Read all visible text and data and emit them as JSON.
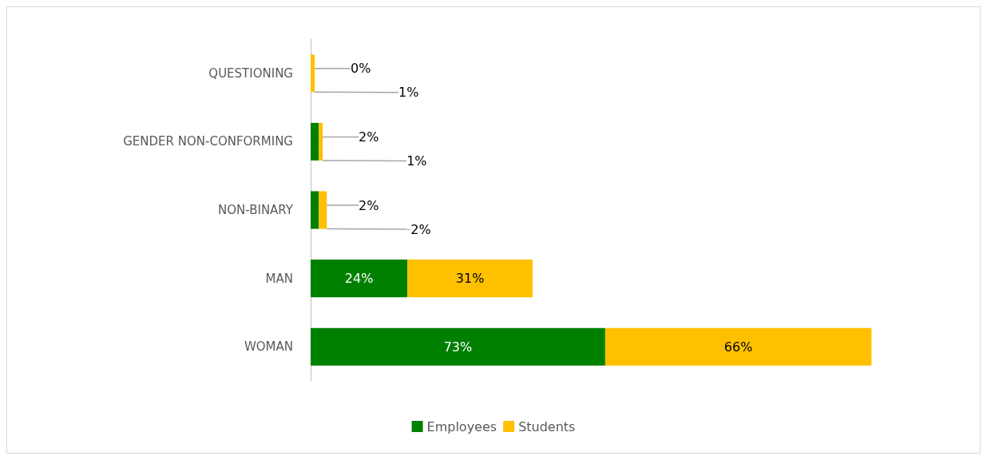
{
  "chart_data": {
    "type": "bar",
    "orientation": "horizontal",
    "stacked": true,
    "categories": [
      "QUESTIONING",
      "GENDER NON-CONFORMING",
      "NON-BINARY",
      "MAN",
      "WOMAN"
    ],
    "series": [
      {
        "name": "Employees",
        "color": "#008000",
        "values": [
          0,
          2,
          2,
          24,
          73
        ],
        "value_labels": [
          "0%",
          "2%",
          "2%",
          "24%",
          "73%"
        ]
      },
      {
        "name": "Students",
        "color": "#ffc000",
        "values": [
          1,
          1,
          2,
          31,
          66
        ],
        "value_labels": [
          "1%",
          "1%",
          "2%",
          "31%",
          "66%"
        ]
      }
    ],
    "legend": "bottom"
  }
}
